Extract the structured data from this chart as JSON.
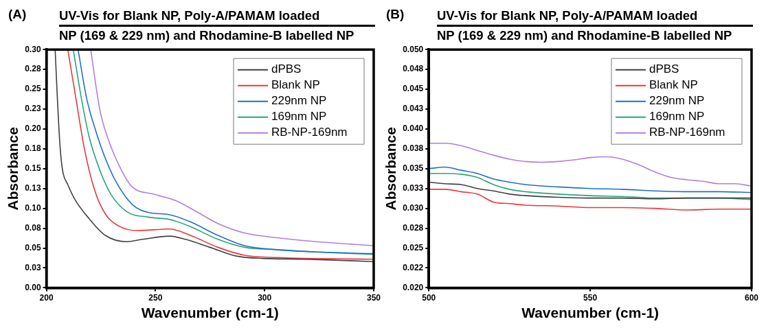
{
  "chart_data": [
    {
      "type": "line",
      "title": "UV-Vis for Blank NP, Poly-A/PAMAM loaded",
      "subtitle": "NP (169 & 229 nm) and Rhodamine-B labelled NP",
      "xlabel": "Wavenumber (cm-1)",
      "ylabel": "Absorbance",
      "annotations": [
        "(A)"
      ],
      "legend": "top right",
      "marker": "none",
      "line_style": "solid",
      "xlim": [
        200,
        350
      ],
      "xticks": [
        200,
        250,
        300,
        350
      ],
      "ylim": [
        0,
        0.3
      ],
      "yticks": [
        {
          "value": 0,
          "label": "0.00"
        },
        {
          "value": 0.025,
          "label": "0.03"
        },
        {
          "value": 0.05,
          "label": "0.05"
        },
        {
          "value": 0.075,
          "label": "0.08"
        },
        {
          "value": 0.1,
          "label": "0.10"
        },
        {
          "value": 0.125,
          "label": "0.13"
        },
        {
          "value": 0.15,
          "label": "0.15"
        },
        {
          "value": 0.175,
          "label": "0.18"
        },
        {
          "value": 0.2,
          "label": "0.20"
        },
        {
          "value": 0.225,
          "label": "0.23"
        },
        {
          "value": 0.25,
          "label": "0.25"
        },
        {
          "value": 0.275,
          "label": "0.28"
        },
        {
          "value": 0.3,
          "label": "0.30"
        }
      ],
      "series": [
        {
          "name": "dPBS",
          "color": "#404040",
          "x": [
            204,
            205,
            206.2,
            207.4,
            209.8,
            212.9,
            219.6,
            227,
            236.8,
            244,
            256.5,
            263.8,
            274.9,
            287,
            299,
            318,
            350
          ],
          "values": [
            0.3,
            0.24,
            0.18,
            0.148,
            0.13,
            0.112,
            0.087,
            0.066,
            0.058,
            0.061,
            0.065,
            0.061,
            0.051,
            0.04,
            0.037,
            0.036,
            0.033
          ]
        },
        {
          "name": "Blank NP",
          "color": "#e8363f",
          "x": [
            209.8,
            213.5,
            217.2,
            222,
            227,
            233,
            241.7,
            256.5,
            266,
            278.6,
            290.8,
            305.6,
            350
          ],
          "values": [
            0.3,
            0.239,
            0.178,
            0.124,
            0.093,
            0.078,
            0.072,
            0.074,
            0.066,
            0.051,
            0.041,
            0.038,
            0.036
          ]
        },
        {
          "name": "229nm NP",
          "color": "#1f6fc6",
          "x": [
            214.5,
            218.4,
            222,
            227,
            232,
            239.3,
            246.6,
            256.5,
            266,
            278.6,
            290.8,
            305.6,
            324,
            350
          ],
          "values": [
            0.3,
            0.239,
            0.203,
            0.163,
            0.133,
            0.105,
            0.095,
            0.092,
            0.083,
            0.066,
            0.053,
            0.048,
            0.045,
            0.043
          ]
        },
        {
          "name": "169nm NP",
          "color": "#2aa37a",
          "x": [
            212.3,
            216,
            219.6,
            224.5,
            229.5,
            236.8,
            246.6,
            256.5,
            266,
            278.6,
            290.8,
            305.6,
            324,
            350
          ],
          "values": [
            0.3,
            0.239,
            0.19,
            0.148,
            0.118,
            0.096,
            0.089,
            0.086,
            0.077,
            0.061,
            0.051,
            0.048,
            0.045,
            0.042
          ]
        },
        {
          "name": "RB-NP-169nm",
          "color": "#b07ee0",
          "x": [
            220.3,
            224.5,
            228.2,
            234.4,
            239.3,
            249,
            259,
            268.7,
            278.6,
            290.8,
            305.6,
            324,
            350
          ],
          "values": [
            0.3,
            0.224,
            0.188,
            0.148,
            0.127,
            0.118,
            0.11,
            0.096,
            0.081,
            0.069,
            0.063,
            0.058,
            0.053
          ]
        }
      ]
    },
    {
      "type": "line",
      "title": "UV-Vis for Blank NP, Poly-A/PAMAM loaded",
      "subtitle": "NP (169 & 229 nm) and Rhodamine-B labelled NP",
      "xlabel": "Wavenumber (cm-1)",
      "ylabel": "Absorbance",
      "annotations": [
        "(B)"
      ],
      "legend": "top right",
      "marker": "none",
      "line_style": "solid",
      "xlim": [
        500,
        600
      ],
      "xticks": [
        500,
        550,
        600
      ],
      "ylim": [
        0.02,
        0.05
      ],
      "yticks": [
        {
          "value": 0.02,
          "label": "0.020"
        },
        {
          "value": 0.0225,
          "label": "0.022"
        },
        {
          "value": 0.025,
          "label": "0.025"
        },
        {
          "value": 0.0275,
          "label": "0.028"
        },
        {
          "value": 0.03,
          "label": "0.030"
        },
        {
          "value": 0.0325,
          "label": "0.033"
        },
        {
          "value": 0.035,
          "label": "0.035"
        },
        {
          "value": 0.0375,
          "label": "0.038"
        },
        {
          "value": 0.04,
          "label": "0.040"
        },
        {
          "value": 0.0425,
          "label": "0.043"
        },
        {
          "value": 0.045,
          "label": "0.045"
        },
        {
          "value": 0.0475,
          "label": "0.048"
        },
        {
          "value": 0.05,
          "label": "0.050"
        }
      ],
      "series": [
        {
          "name": "dPBS",
          "color": "#404040",
          "x": [
            500,
            505,
            510,
            515,
            520,
            525,
            530,
            540,
            550,
            560,
            570,
            580,
            590,
            600
          ],
          "values": [
            0.0333,
            0.0331,
            0.033,
            0.0325,
            0.0322,
            0.0318,
            0.0316,
            0.0314,
            0.0313,
            0.0313,
            0.0312,
            0.0313,
            0.0313,
            0.0313
          ]
        },
        {
          "name": "Blank NP",
          "color": "#e8363f",
          "x": [
            500,
            505,
            510,
            515,
            520,
            525,
            530,
            540,
            550,
            560,
            570,
            580,
            590,
            600
          ],
          "values": [
            0.0324,
            0.0324,
            0.0321,
            0.0318,
            0.0308,
            0.0306,
            0.0304,
            0.0303,
            0.0301,
            0.0301,
            0.03,
            0.0298,
            0.0299,
            0.0299
          ]
        },
        {
          "name": "229nm NP",
          "color": "#1f6fc6",
          "x": [
            500,
            505,
            510,
            515,
            520,
            525,
            530,
            540,
            550,
            560,
            570,
            580,
            590,
            600
          ],
          "values": [
            0.035,
            0.0352,
            0.0348,
            0.0344,
            0.0337,
            0.0333,
            0.033,
            0.0327,
            0.0325,
            0.0324,
            0.0322,
            0.0321,
            0.0321,
            0.032
          ]
        },
        {
          "name": "169nm NP",
          "color": "#2aa37a",
          "x": [
            500,
            505,
            510,
            515,
            520,
            525,
            530,
            540,
            550,
            560,
            570,
            580,
            590,
            600
          ],
          "values": [
            0.0344,
            0.0344,
            0.0343,
            0.0339,
            0.033,
            0.0324,
            0.0321,
            0.0318,
            0.0316,
            0.0315,
            0.0313,
            0.0313,
            0.0313,
            0.0311
          ]
        },
        {
          "name": "RB-NP-169nm",
          "color": "#b07ee0",
          "x": [
            500,
            505,
            510,
            515,
            520,
            525,
            530,
            535,
            540,
            545,
            550,
            555,
            560,
            565,
            570,
            575,
            580,
            585,
            590,
            595,
            600
          ],
          "values": [
            0.0382,
            0.0382,
            0.0379,
            0.0373,
            0.0367,
            0.0362,
            0.0359,
            0.0358,
            0.0359,
            0.0361,
            0.0364,
            0.0365,
            0.0362,
            0.0355,
            0.0346,
            0.0339,
            0.0336,
            0.0334,
            0.0331,
            0.0331,
            0.0328
          ]
        }
      ]
    }
  ]
}
